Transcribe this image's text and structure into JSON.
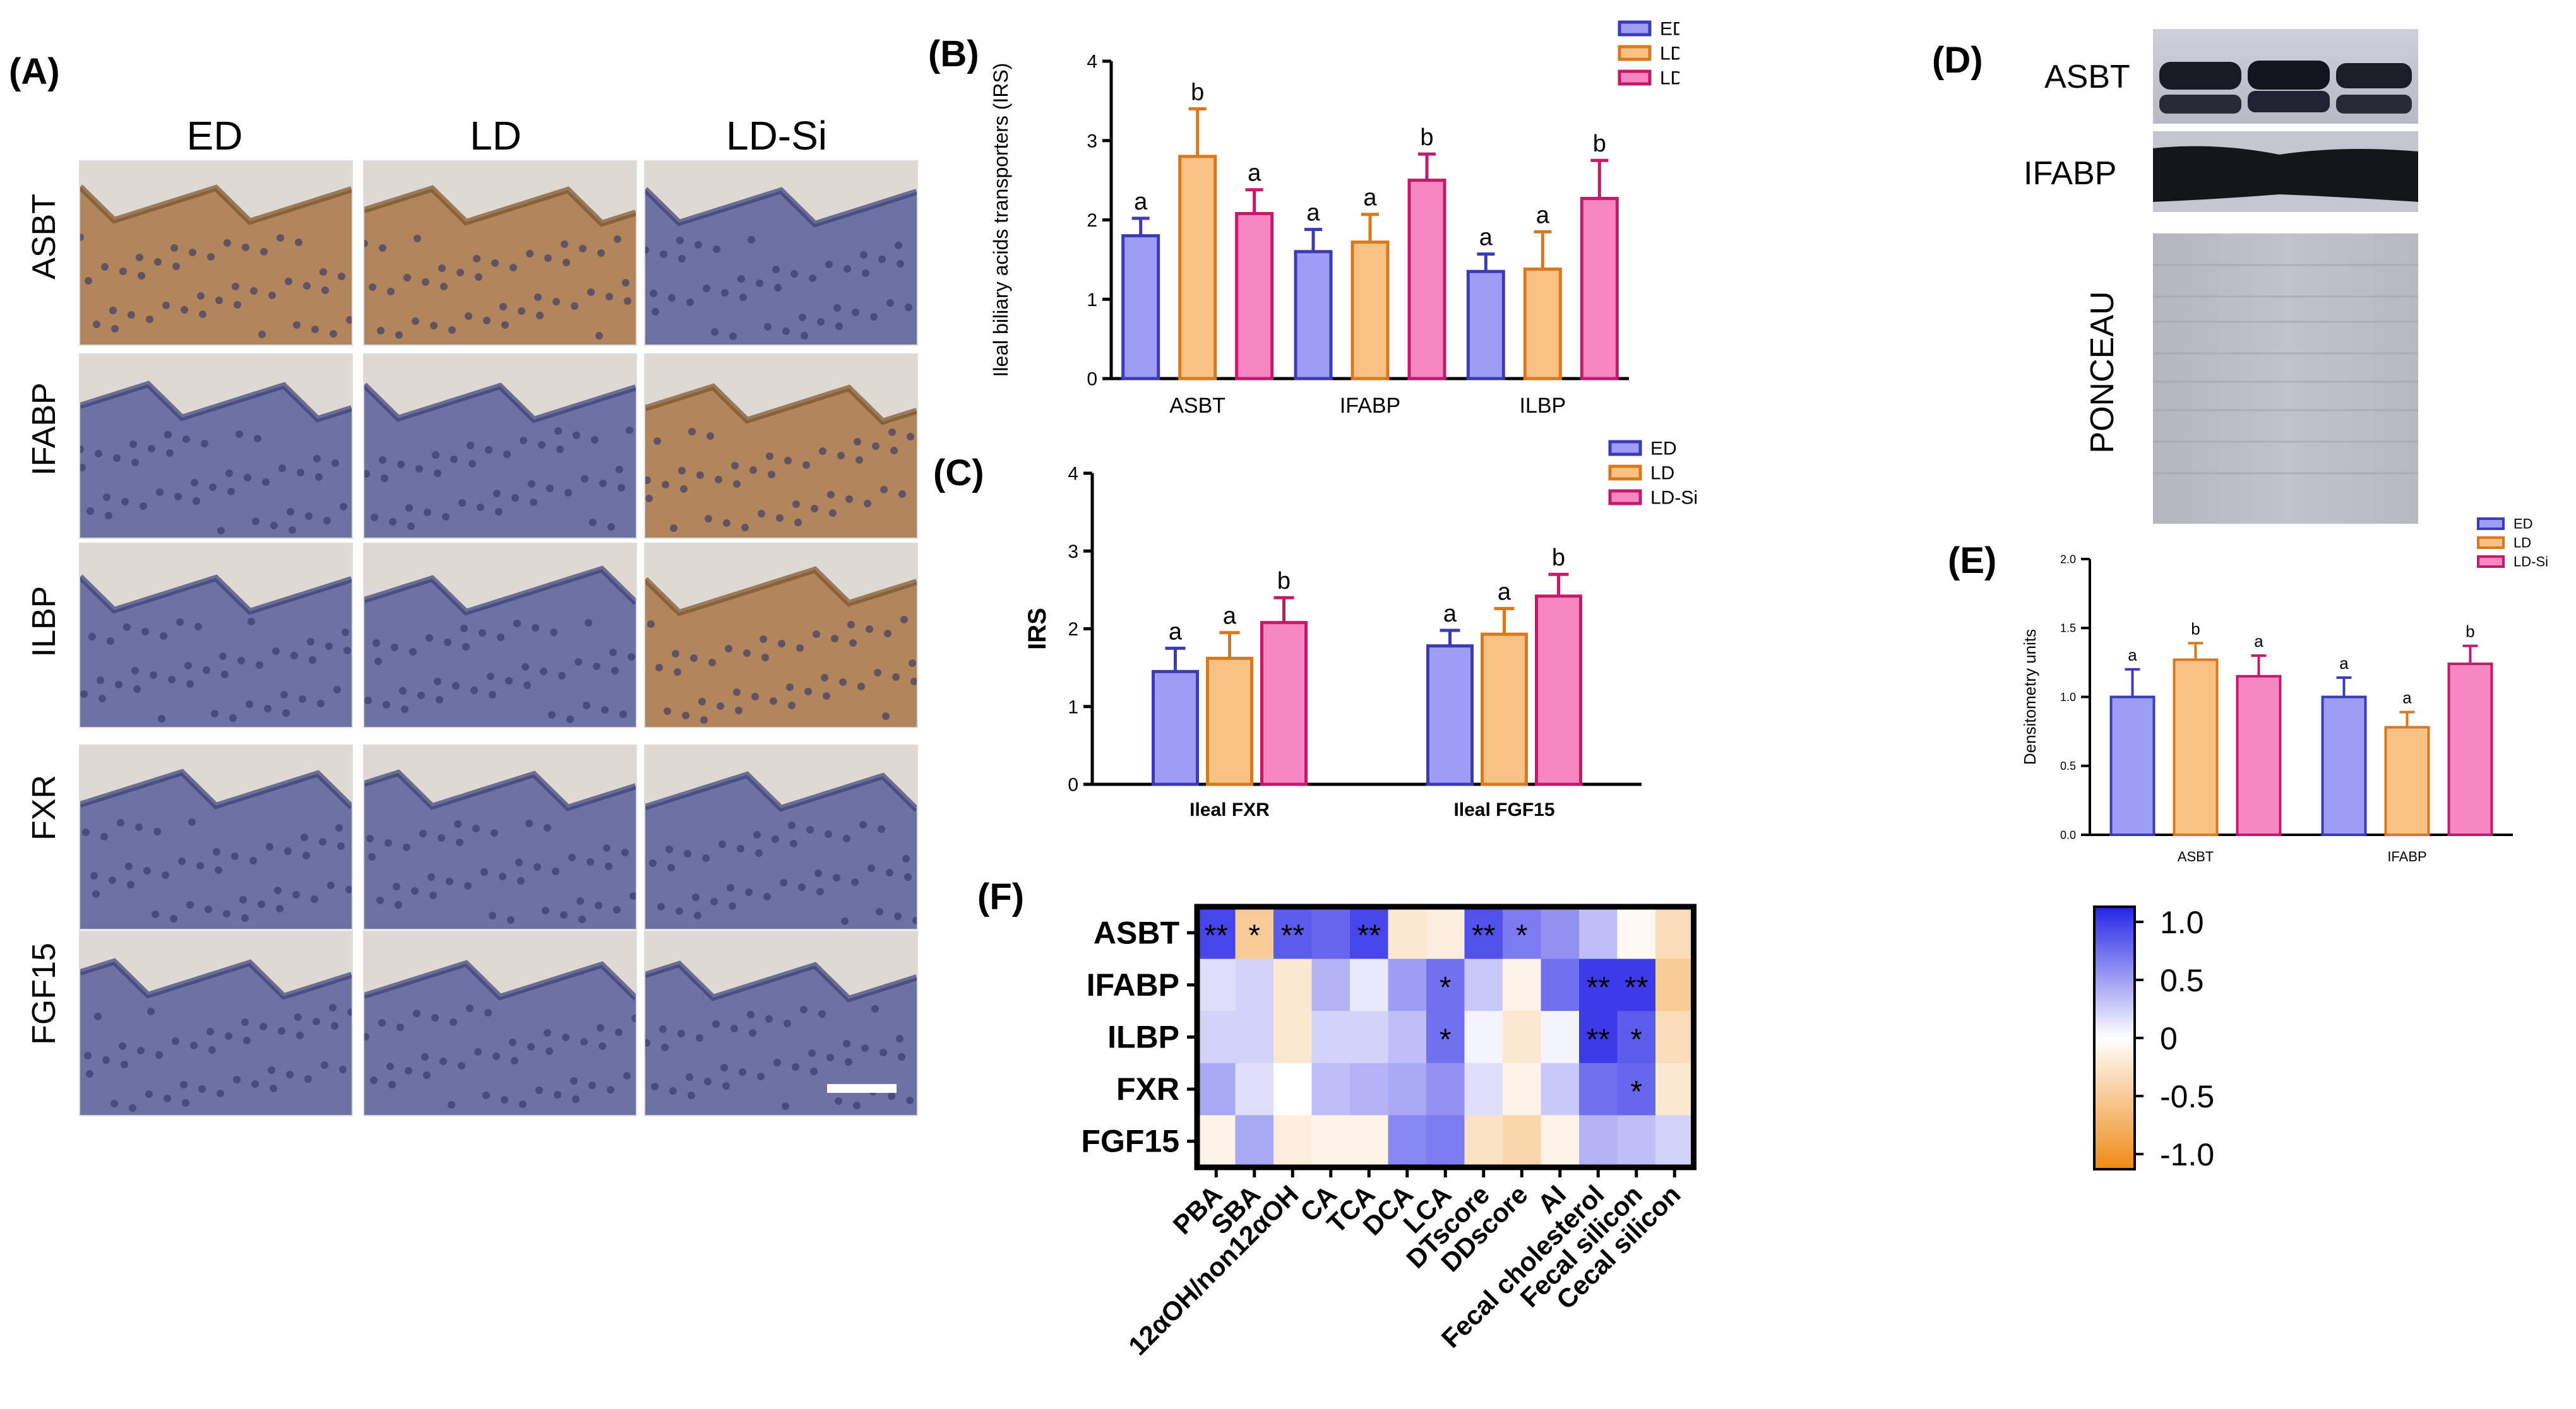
{
  "panelA": {
    "letter": "(A)",
    "columns": [
      "ED",
      "LD",
      "LD-Si"
    ],
    "rows": [
      "ASBT",
      "IFABP",
      "ILBP",
      "FXR",
      "FGF15"
    ],
    "stain_colors": {
      "brown": "#a97747",
      "blue": "#5a5f9a",
      "background": "#dfd9d3"
    }
  },
  "legend": {
    "items": [
      "ED",
      "LD",
      "LD-Si"
    ],
    "colors": {
      "ED": "#3b3bb7",
      "LD": "#d9791e",
      "LD-Si": "#c41a6b"
    },
    "fills": {
      "ED": "#9d9df5",
      "LD": "#f9c284",
      "LD-Si": "#f586bf"
    }
  },
  "panelB": {
    "letter": "(B)"
  },
  "panelC": {
    "letter": "(C)"
  },
  "panelD": {
    "letter": "(D)",
    "bands": [
      "ASBT",
      "IFABP"
    ],
    "loading_label": "PONCEAU"
  },
  "panelE": {
    "letter": "(E)"
  },
  "panelF": {
    "letter": "(F)"
  },
  "chart_data": [
    {
      "id": "B",
      "type": "bar",
      "ylabel": "Ileal biliary acids transporters (IRS)",
      "categories": [
        "ASBT",
        "IFABP",
        "ILBP"
      ],
      "ylim": [
        0,
        4
      ],
      "yticks": [
        "0",
        "1",
        "2",
        "3",
        "4"
      ],
      "series": [
        {
          "name": "ED",
          "values": [
            1.8,
            1.6,
            1.35
          ],
          "errors": [
            0.22,
            0.28,
            0.22
          ],
          "letters": [
            "a",
            "a",
            "a"
          ]
        },
        {
          "name": "LD",
          "values": [
            2.8,
            1.72,
            1.38
          ],
          "errors": [
            0.6,
            0.35,
            0.47
          ],
          "letters": [
            "b",
            "a",
            "a"
          ]
        },
        {
          "name": "LD-Si",
          "values": [
            2.08,
            2.5,
            2.27
          ],
          "errors": [
            0.3,
            0.33,
            0.48
          ],
          "letters": [
            "a",
            "b",
            "b"
          ]
        }
      ]
    },
    {
      "id": "C",
      "type": "bar",
      "ylabel": "IRS",
      "categories": [
        "Ileal FXR",
        "Ileal FGF15"
      ],
      "ylim": [
        0,
        4
      ],
      "yticks": [
        "0",
        "1",
        "2",
        "3",
        "4"
      ],
      "series": [
        {
          "name": "ED",
          "values": [
            1.45,
            1.78
          ],
          "errors": [
            0.3,
            0.2
          ],
          "letters": [
            "a",
            "a"
          ]
        },
        {
          "name": "LD",
          "values": [
            1.62,
            1.93
          ],
          "errors": [
            0.33,
            0.33
          ],
          "letters": [
            "a",
            "a"
          ]
        },
        {
          "name": "LD-Si",
          "values": [
            2.08,
            2.42
          ],
          "errors": [
            0.32,
            0.28
          ],
          "letters": [
            "b",
            "b"
          ]
        }
      ]
    },
    {
      "id": "E",
      "type": "bar",
      "ylabel": "Densitometry units",
      "categories": [
        "ASBT",
        "IFABP"
      ],
      "ylim": [
        0,
        2
      ],
      "yticks": [
        "0.0",
        "0.5",
        "1.0",
        "1.5",
        "2.0"
      ],
      "series": [
        {
          "name": "ED",
          "values": [
            1.0,
            1.0
          ],
          "errors": [
            0.2,
            0.14
          ],
          "letters": [
            "a",
            "a"
          ]
        },
        {
          "name": "LD",
          "values": [
            1.27,
            0.78
          ],
          "errors": [
            0.12,
            0.11
          ],
          "letters": [
            "b",
            "a"
          ]
        },
        {
          "name": "LD-Si",
          "values": [
            1.15,
            1.24
          ],
          "errors": [
            0.15,
            0.13
          ],
          "letters": [
            "a",
            "b"
          ]
        }
      ]
    },
    {
      "id": "F",
      "type": "heatmap",
      "rows": [
        "ASBT",
        "IFABP",
        "ILBP",
        "FXR",
        "FGF15"
      ],
      "columns": [
        "PBA",
        "SBA",
        "12αOH/non12αOH",
        "CA",
        "TCA",
        "DCA",
        "LCA",
        "DTscore",
        "DDscore",
        "AI",
        "Fecal cholesterol",
        "Fecal silicon",
        "Cecal silicon"
      ],
      "values": [
        [
          0.85,
          -0.45,
          0.75,
          0.7,
          0.85,
          -0.2,
          -0.15,
          0.8,
          0.6,
          0.5,
          0.3,
          -0.05,
          -0.3
        ],
        [
          0.15,
          0.2,
          -0.2,
          0.35,
          0.1,
          0.45,
          0.65,
          0.25,
          -0.1,
          0.65,
          0.9,
          0.9,
          -0.45
        ],
        [
          0.2,
          0.2,
          -0.2,
          0.2,
          0.2,
          0.3,
          0.65,
          0.05,
          -0.2,
          0.05,
          0.9,
          0.75,
          -0.3
        ],
        [
          0.4,
          0.15,
          0.0,
          0.3,
          0.35,
          0.4,
          0.5,
          0.15,
          -0.1,
          0.25,
          0.65,
          0.7,
          -0.2
        ],
        [
          -0.1,
          0.4,
          -0.15,
          -0.1,
          -0.1,
          0.55,
          0.6,
          -0.25,
          -0.35,
          -0.1,
          0.35,
          0.3,
          0.2
        ]
      ],
      "stars": [
        [
          "**",
          "*",
          "**",
          "",
          "**",
          "",
          "",
          "**",
          "*",
          "",
          "",
          "",
          ""
        ],
        [
          "",
          "",
          "",
          "",
          "",
          "",
          "*",
          "",
          "",
          "",
          "**",
          "**",
          ""
        ],
        [
          "",
          "",
          "",
          "",
          "",
          "",
          "*",
          "",
          "",
          "",
          "**",
          "*",
          ""
        ],
        [
          "",
          "",
          "",
          "",
          "",
          "",
          "",
          "",
          "",
          "",
          "",
          "*",
          ""
        ],
        [
          "",
          "",
          "",
          "",
          "",
          "",
          "",
          "",
          "",
          "",
          "",
          "",
          ""
        ]
      ],
      "colorbar": {
        "min": -1.0,
        "max": 1.0,
        "ticks": [
          "1.0",
          "0.5",
          "0",
          "-0.5",
          "-1.0"
        ]
      },
      "colors": {
        "positive": "#2525e6",
        "neutral": "#ffffff",
        "negative": "#f08a13"
      }
    }
  ]
}
